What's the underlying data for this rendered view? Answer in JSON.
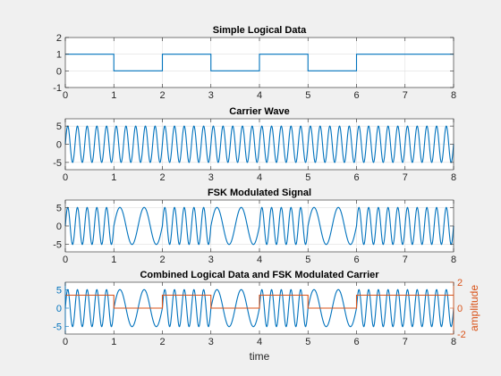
{
  "colors": {
    "figure_bg": "#f0f0f0",
    "axes_bg": "#ffffff",
    "axes_edge": "#262626",
    "grid": "#dfdfdf",
    "series_blue": "#0072bd",
    "series_orange": "#d95319"
  },
  "chart_data": [
    {
      "type": "line",
      "title": "Simple Logical Data",
      "xlabel": "",
      "ylabel": "",
      "xlim": [
        0,
        8
      ],
      "ylim": [
        -1,
        2
      ],
      "xticks": [
        "0",
        "1",
        "2",
        "3",
        "4",
        "5",
        "6",
        "7",
        "8"
      ],
      "yticks": [
        "-1",
        "0",
        "1",
        "2"
      ],
      "grid": true,
      "bits": [
        1,
        0,
        1,
        0,
        1,
        0,
        1,
        1
      ],
      "series": [
        {
          "kind": "step",
          "color": "#0072bd",
          "x": [
            0,
            1,
            2,
            3,
            4,
            5,
            6,
            7,
            8
          ],
          "y": [
            1,
            0,
            1,
            0,
            1,
            0,
            1,
            1,
            1
          ]
        }
      ]
    },
    {
      "type": "line",
      "title": "Carrier Wave",
      "xlabel": "",
      "ylabel": "",
      "xlim": [
        0,
        8
      ],
      "ylim": [
        -7,
        7
      ],
      "xticks": [
        "0",
        "1",
        "2",
        "3",
        "4",
        "5",
        "6",
        "7",
        "8"
      ],
      "yticks": [
        "-5",
        "0",
        "5"
      ],
      "yticks_values": [
        -5,
        0,
        5
      ],
      "grid": true,
      "series": [
        {
          "kind": "sine",
          "color": "#0072bd",
          "amplitude": 5,
          "frequency": 5,
          "x_range": [
            0,
            8
          ]
        }
      ]
    },
    {
      "type": "line",
      "title": "FSK Modulated Signal",
      "xlabel": "",
      "ylabel": "",
      "xlim": [
        0,
        8
      ],
      "ylim": [
        -7,
        7
      ],
      "xticks": [
        "0",
        "1",
        "2",
        "3",
        "4",
        "5",
        "6",
        "7",
        "8"
      ],
      "yticks": [
        "-5",
        "0",
        "5"
      ],
      "yticks_values": [
        -5,
        0,
        5
      ],
      "grid": true,
      "bits": [
        1,
        0,
        1,
        0,
        1,
        0,
        1,
        1
      ],
      "freq_for_one": 5,
      "freq_for_zero": 2,
      "series": [
        {
          "kind": "fsk",
          "color": "#0072bd",
          "amplitude": 5,
          "x_range": [
            0,
            8
          ]
        }
      ]
    },
    {
      "type": "line",
      "title": "Combined Logical Data and FSK Modulated Carrier",
      "xlabel": "time",
      "ylabel": "",
      "ylabel_right": "amplitude",
      "xlim": [
        0,
        8
      ],
      "ylim": [
        -7,
        7
      ],
      "ylim_right": [
        -2,
        2
      ],
      "xticks": [
        "0",
        "1",
        "2",
        "3",
        "4",
        "5",
        "6",
        "7",
        "8"
      ],
      "yticks": [
        "-5",
        "0",
        "5"
      ],
      "yticks_values": [
        -5,
        0,
        5
      ],
      "yticks_right": [
        "-2",
        "0",
        "2"
      ],
      "yticks_right_values": [
        -2,
        0,
        2
      ],
      "grid": false,
      "bits": [
        1,
        0,
        1,
        0,
        1,
        0,
        1,
        1
      ],
      "freq_for_one": 5,
      "freq_for_zero": 2,
      "series": [
        {
          "kind": "fsk",
          "color": "#0072bd",
          "amplitude": 5,
          "axis": "left",
          "x_range": [
            0,
            8
          ]
        },
        {
          "kind": "step",
          "color": "#d95319",
          "axis": "right",
          "x": [
            0,
            1,
            2,
            3,
            4,
            5,
            6,
            7,
            8
          ],
          "y": [
            1,
            0,
            1,
            0,
            1,
            0,
            1,
            1,
            1
          ]
        }
      ]
    }
  ]
}
